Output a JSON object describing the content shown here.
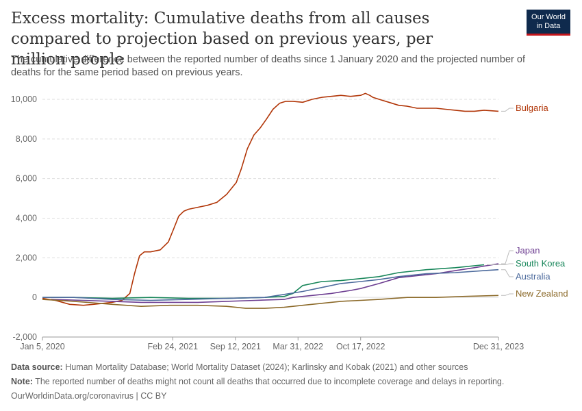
{
  "header": {
    "title": "Excess mortality: Cumulative deaths from all causes compared to projection based on previous years, per million people",
    "subtitle": "The cumulative difference between the reported number of deaths since 1 January 2020 and the projected number of deaths for the same period based on previous years.",
    "logo_line1": "Our World",
    "logo_line2": "in Data"
  },
  "footer": {
    "source_label": "Data source:",
    "source_text": "Human Mortality Database; World Mortality Dataset (2024); Karlinsky and Kobak (2021) and other sources",
    "note_label": "Note:",
    "note_text": "The reported number of deaths might not count all deaths that occurred due to incomplete coverage and delays in reporting.",
    "url": "OurWorldinData.org/coronavirus | CC BY"
  },
  "colors": {
    "Bulgaria": "#b13507",
    "Japan": "#6d3e91",
    "South Korea": "#18865a",
    "Australia": "#4c6a9c",
    "New Zealand": "#8c6a2a",
    "grid": "#dddddd",
    "axis_text": "#666666"
  },
  "chart_data": {
    "type": "line",
    "ylim": [
      -2000,
      10000
    ],
    "yticks": [
      -2000,
      0,
      2000,
      4000,
      6000,
      8000,
      10000
    ],
    "ytick_labels": [
      "-2,000",
      "0",
      "2,000",
      "4,000",
      "6,000",
      "8,000",
      "10,000"
    ],
    "xlim": [
      "2020-01-01",
      "2024-01-01"
    ],
    "xticks": [
      "2020-01-05",
      "2021-02-24",
      "2021-09-12",
      "2022-03-31",
      "2022-10-17",
      "2023-12-31"
    ],
    "xtick_labels": [
      "Jan 5, 2020",
      "Feb 24, 2021",
      "Sep 12, 2021",
      "Mar 31, 2022",
      "Oct 17, 2022",
      "Dec 31, 2023"
    ],
    "grid": true,
    "legend": "right (line-end labels)",
    "series": [
      {
        "name": "Bulgaria",
        "x": [
          "2020-01-05",
          "2020-02-15",
          "2020-04-01",
          "2020-05-15",
          "2020-06-15",
          "2020-08-15",
          "2020-09-15",
          "2020-10-10",
          "2020-10-25",
          "2020-11-10",
          "2020-11-25",
          "2020-12-15",
          "2021-01-15",
          "2021-02-10",
          "2021-02-28",
          "2021-03-15",
          "2021-03-31",
          "2021-04-15",
          "2021-05-15",
          "2021-06-15",
          "2021-07-15",
          "2021-08-15",
          "2021-09-15",
          "2021-10-01",
          "2021-10-20",
          "2021-11-10",
          "2021-11-30",
          "2021-12-20",
          "2022-01-10",
          "2022-01-31",
          "2022-02-20",
          "2022-03-15",
          "2022-04-15",
          "2022-05-15",
          "2022-06-15",
          "2022-07-15",
          "2022-08-15",
          "2022-09-15",
          "2022-10-17",
          "2022-11-01",
          "2022-11-15",
          "2022-11-25",
          "2022-12-15",
          "2023-01-15",
          "2023-02-15",
          "2023-03-15",
          "2023-04-15",
          "2023-05-15",
          "2023-06-15",
          "2023-07-15",
          "2023-08-15",
          "2023-09-15",
          "2023-10-15",
          "2023-11-15",
          "2023-12-31"
        ],
        "values": [
          -50,
          -150,
          -350,
          -400,
          -350,
          -250,
          -150,
          200,
          1200,
          2100,
          2300,
          2300,
          2400,
          2800,
          3500,
          4100,
          4350,
          4450,
          4550,
          4650,
          4800,
          5200,
          5800,
          6500,
          7500,
          8200,
          8550,
          9000,
          9500,
          9800,
          9900,
          9900,
          9850,
          10000,
          10100,
          10150,
          10200,
          10150,
          10200,
          10300,
          10200,
          10100,
          10000,
          9850,
          9700,
          9650,
          9550,
          9550,
          9550,
          9500,
          9450,
          9400,
          9400,
          9450,
          9400
        ]
      },
      {
        "name": "Japan",
        "x": [
          "2020-02-01",
          "2020-05-15",
          "2020-08-15",
          "2020-11-15",
          "2021-02-15",
          "2021-05-15",
          "2021-08-15",
          "2021-11-15",
          "2022-02-15",
          "2022-03-15",
          "2022-05-15",
          "2022-07-15",
          "2022-09-15",
          "2022-10-17",
          "2022-12-15",
          "2023-02-15",
          "2023-04-15",
          "2023-06-15",
          "2023-08-15",
          "2023-10-15",
          "2023-12-31"
        ],
        "values": [
          -100,
          -150,
          -200,
          -250,
          -250,
          -250,
          -200,
          -150,
          -100,
          0,
          100,
          200,
          350,
          450,
          700,
          1000,
          1100,
          1200,
          1350,
          1500,
          1700
        ]
      },
      {
        "name": "South Korea",
        "x": [
          "2020-01-05",
          "2020-04-15",
          "2020-08-15",
          "2020-12-15",
          "2021-04-15",
          "2021-08-15",
          "2021-12-15",
          "2022-02-15",
          "2022-03-15",
          "2022-04-15",
          "2022-06-15",
          "2022-08-15",
          "2022-10-17",
          "2022-12-15",
          "2023-02-15",
          "2023-05-15",
          "2023-08-15",
          "2023-11-15"
        ],
        "values": [
          0,
          0,
          -50,
          0,
          -50,
          -50,
          0,
          50,
          200,
          600,
          800,
          850,
          950,
          1050,
          1250,
          1400,
          1500,
          1650
        ]
      },
      {
        "name": "Australia",
        "x": [
          "2020-01-05",
          "2020-04-15",
          "2020-08-15",
          "2020-12-15",
          "2021-04-15",
          "2021-08-15",
          "2021-12-15",
          "2022-02-15",
          "2022-04-15",
          "2022-06-15",
          "2022-08-15",
          "2022-10-17",
          "2022-12-15",
          "2023-02-15",
          "2023-05-15",
          "2023-08-15",
          "2023-11-15",
          "2023-12-31"
        ],
        "values": [
          0,
          0,
          -100,
          -150,
          -100,
          -50,
          0,
          150,
          300,
          500,
          700,
          800,
          900,
          1050,
          1200,
          1250,
          1350,
          1400
        ]
      },
      {
        "name": "New Zealand",
        "x": [
          "2020-01-05",
          "2020-04-15",
          "2020-08-15",
          "2020-11-15",
          "2021-02-15",
          "2021-05-15",
          "2021-08-15",
          "2021-10-15",
          "2021-12-15",
          "2022-02-15",
          "2022-04-15",
          "2022-06-15",
          "2022-08-15",
          "2022-10-17",
          "2022-12-15",
          "2023-03-15",
          "2023-06-15",
          "2023-09-15",
          "2023-12-31"
        ],
        "values": [
          -100,
          -200,
          -350,
          -450,
          -400,
          -400,
          -450,
          -550,
          -550,
          -500,
          -400,
          -300,
          -200,
          -150,
          -100,
          0,
          0,
          50,
          100
        ]
      }
    ]
  }
}
